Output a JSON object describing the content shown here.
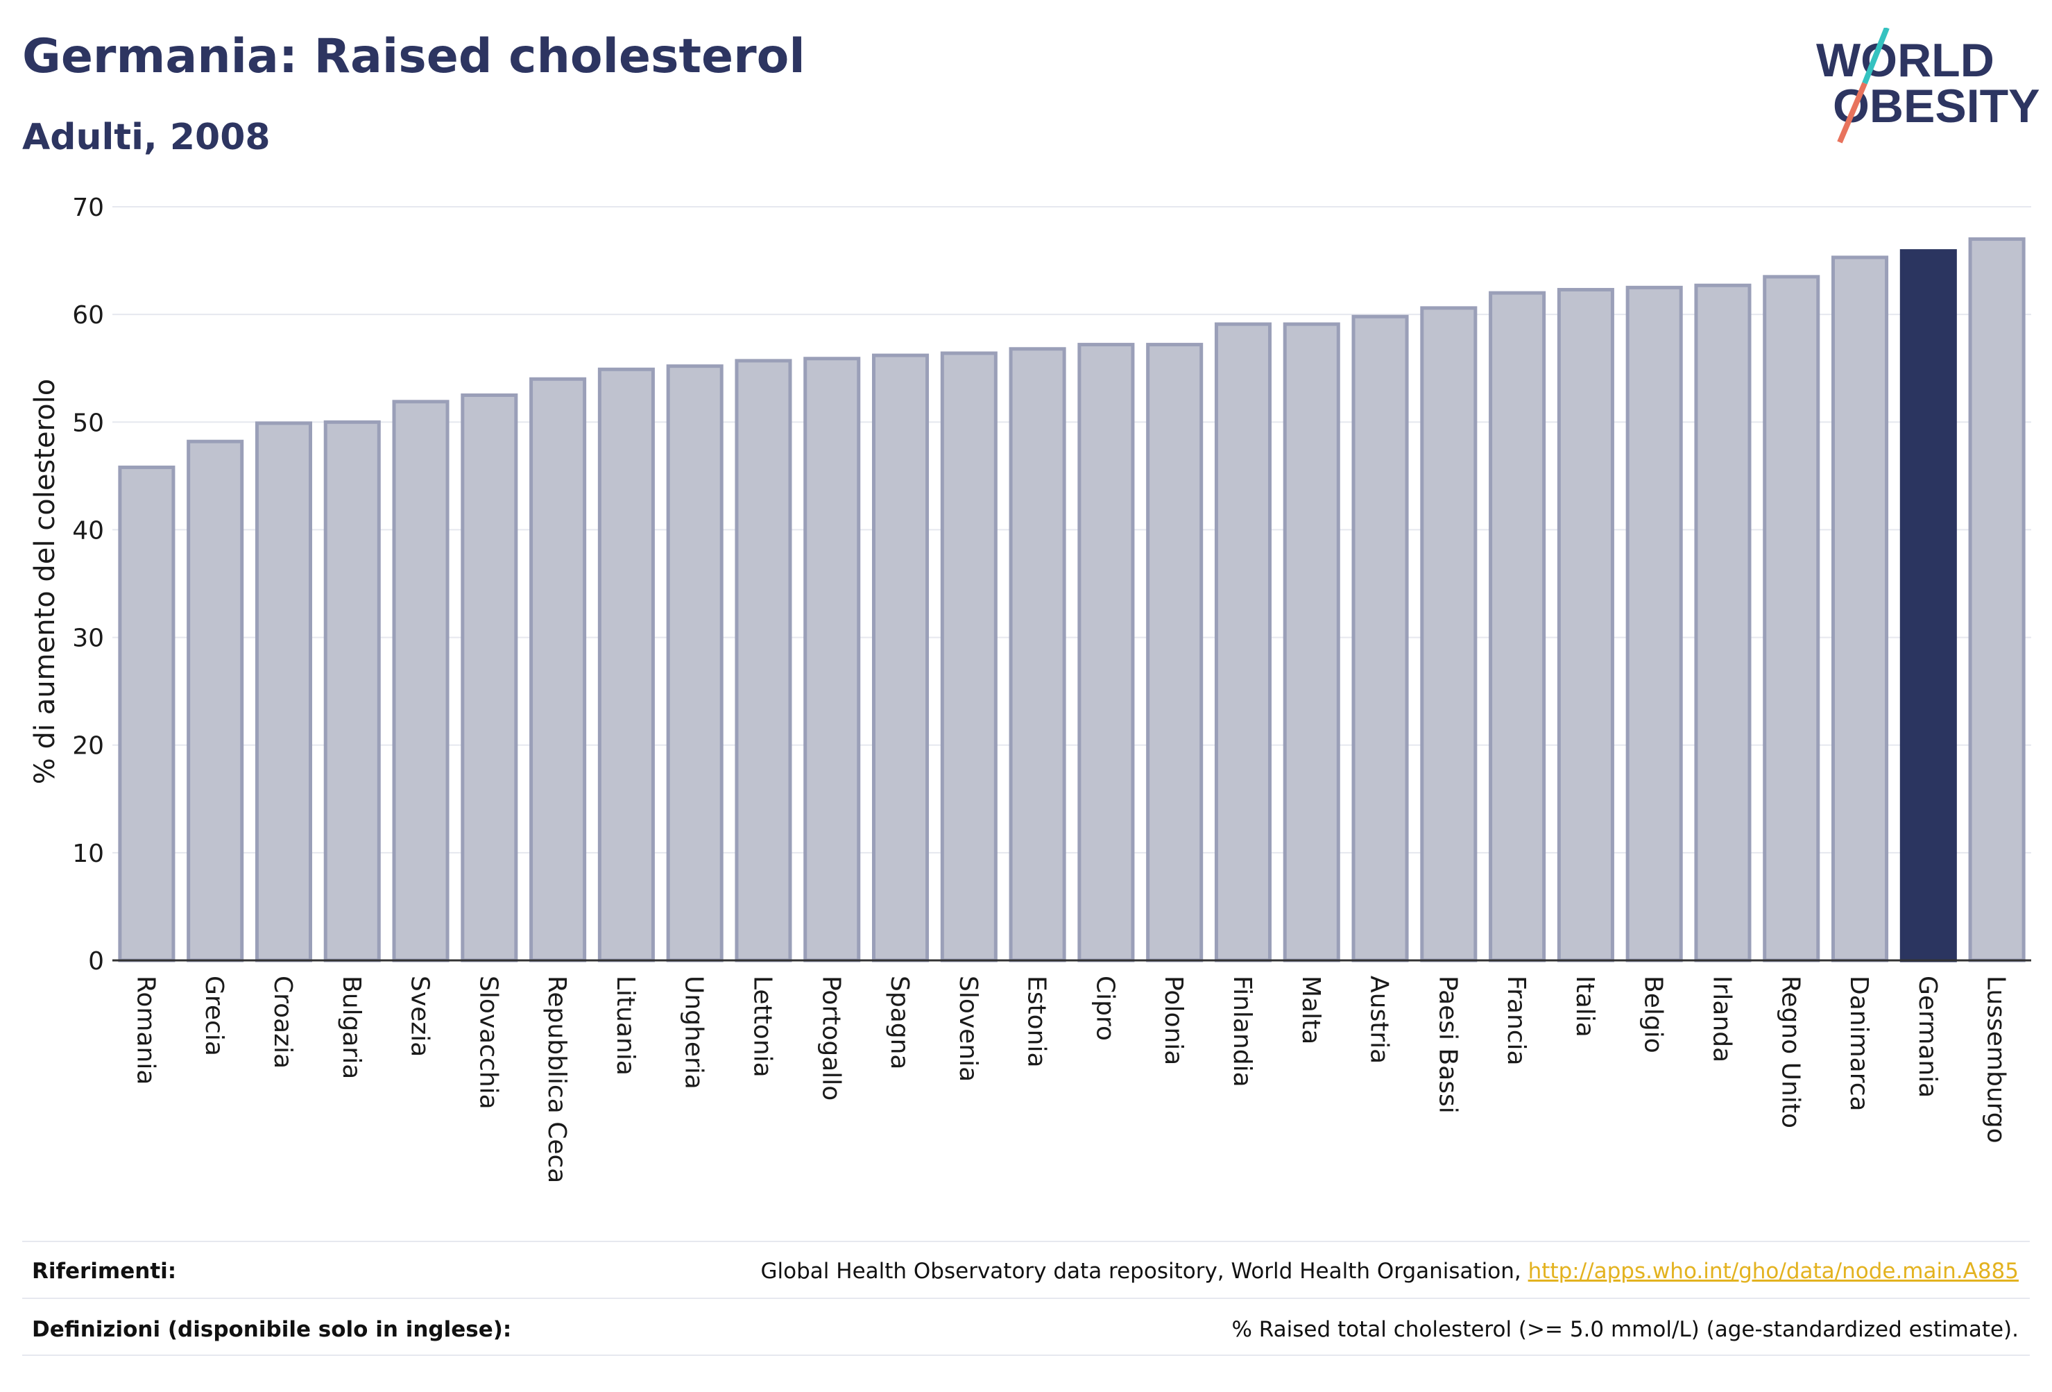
{
  "header": {
    "title": "Germania: Raised cholesterol",
    "subtitle": "Adulti, 2008"
  },
  "logo": {
    "line1": "WORLD",
    "line2": "OBESITY",
    "colors": {
      "text": "#2d3561",
      "slash_top": "#35c2c0",
      "slash_bottom": "#e8735d"
    }
  },
  "chart_data": {
    "type": "bar",
    "title": "",
    "xlabel": "",
    "ylabel": "% di aumento del colesterolo",
    "ylim": [
      0,
      70
    ],
    "yticks": [
      0,
      10,
      20,
      30,
      40,
      50,
      60,
      70
    ],
    "grid": true,
    "categories": [
      "Romania",
      "Grecia",
      "Croazia",
      "Bulgaria",
      "Svezia",
      "Slovacchia",
      "Repubblica Ceca",
      "Lituania",
      "Ungheria",
      "Lettonia",
      "Portogallo",
      "Spagna",
      "Slovenia",
      "Estonia",
      "Cipro",
      "Polonia",
      "Finlandia",
      "Malta",
      "Austria",
      "Paesi Bassi",
      "Francia",
      "Italia",
      "Belgio",
      "Irlanda",
      "Regno Unito",
      "Danimarca",
      "Germania",
      "Lussemburgo"
    ],
    "values": [
      45.8,
      48.2,
      49.9,
      50.0,
      51.9,
      52.5,
      54.0,
      54.9,
      55.2,
      55.7,
      55.9,
      56.2,
      56.4,
      56.8,
      57.2,
      57.2,
      59.1,
      59.1,
      59.8,
      60.6,
      62.0,
      62.3,
      62.5,
      62.7,
      63.5,
      65.3,
      65.9,
      67.0
    ],
    "highlight": "Germania",
    "colors": {
      "bar": "#bfc2cf",
      "bar_edge": "#9a9fb8",
      "highlight": "#2b3560",
      "grid": "#e6e8ef",
      "axis": "#333333"
    }
  },
  "footer": {
    "references_label": "Riferimenti:",
    "references_text": "Global Health Observatory data repository, World Health Organisation, ",
    "references_link": "http://apps.who.int/gho/data/node.main.A885",
    "definitions_label": "Definizioni (disponibile solo in inglese):",
    "definitions_text": "% Raised total cholesterol (>= 5.0 mmol/L) (age-standardized estimate)."
  }
}
